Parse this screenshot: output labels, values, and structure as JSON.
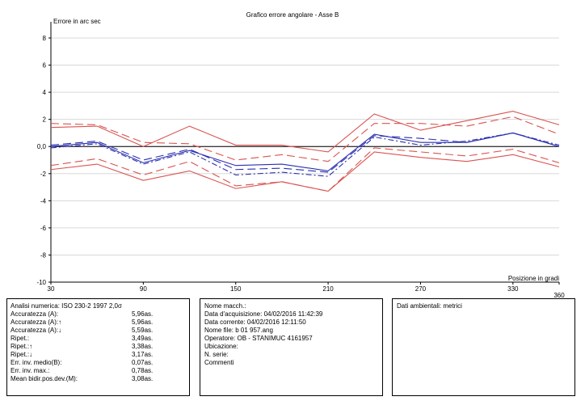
{
  "chart_data": {
    "type": "line",
    "title": "Grafico errore angolare - Asse B",
    "ylabel": "Errore in arc sec",
    "xlabel": "Posizione in gradi",
    "xlim": [
      30,
      360
    ],
    "ylim": [
      -10,
      8
    ],
    "x_ticks": [
      "30",
      "90",
      "150",
      "210",
      "270",
      "330",
      "360"
    ],
    "y_ticks": [
      "8",
      "6",
      "4",
      "2",
      "0,0",
      "-2",
      "-4",
      "-6",
      "-8",
      "-10"
    ],
    "grid": "horizontal",
    "x": [
      30,
      60,
      90,
      120,
      150,
      180,
      210,
      240,
      270,
      300,
      330,
      360
    ],
    "series": [
      {
        "color": "#d9534f",
        "style": "solid",
        "values": [
          1.4,
          1.5,
          0.0,
          1.5,
          0.1,
          0.1,
          -0.4,
          2.4,
          1.2,
          1.9,
          2.6,
          1.6
        ]
      },
      {
        "color": "#d9534f",
        "style": "dashed",
        "values": [
          1.7,
          1.6,
          0.3,
          0.2,
          -1.0,
          -0.6,
          -1.1,
          1.7,
          1.7,
          1.5,
          2.2,
          0.9
        ]
      },
      {
        "color": "#d9534f",
        "style": "dashed",
        "values": [
          -1.4,
          -0.9,
          -2.1,
          -1.1,
          -2.9,
          -2.6,
          -3.3,
          -0.1,
          -0.4,
          -0.7,
          -0.2,
          -1.2
        ]
      },
      {
        "color": "#d9534f",
        "style": "solid",
        "values": [
          -1.7,
          -1.3,
          -2.5,
          -1.8,
          -3.1,
          -2.6,
          -3.3,
          -0.4,
          -0.8,
          -1.1,
          -0.6,
          -1.5
        ]
      },
      {
        "color": "#2a2fb0",
        "style": "solid",
        "values": [
          0.0,
          0.3,
          -1.2,
          -0.3,
          -1.4,
          -1.3,
          -1.8,
          0.9,
          0.3,
          0.3,
          1.0,
          0.0
        ]
      },
      {
        "color": "#2a2fb0",
        "style": "dashed",
        "values": [
          0.1,
          0.4,
          -1.0,
          -0.2,
          -1.7,
          -1.6,
          -1.9,
          0.8,
          0.6,
          0.3,
          1.0,
          0.0
        ]
      },
      {
        "color": "#2a2fb0",
        "style": "dashdot",
        "values": [
          -0.1,
          0.2,
          -1.3,
          -0.4,
          -2.1,
          -1.9,
          -2.2,
          0.7,
          0.1,
          0.4,
          1.0,
          0.1
        ]
      }
    ],
    "zero_line": true
  },
  "analysis": {
    "header": "Analisi numerica:  ISO 230-2 1997 2,0σ",
    "rows": [
      {
        "label": "Accuratezza (A):",
        "value": "5,96as."
      },
      {
        "label": "Accuratezza (A):↑",
        "value": "5,96as."
      },
      {
        "label": "Accuratezza (A):↓",
        "value": "5,59as."
      },
      {
        "label": "Ripet.:",
        "value": "3,49as."
      },
      {
        "label": "Ripet.:↑",
        "value": "3,38as."
      },
      {
        "label": "Ripet.:↓",
        "value": "3,17as."
      },
      {
        "label": "Err. inv. medio(B):",
        "value": "0,07as."
      },
      {
        "label": "Err. inv. max.:",
        "value": "0,78as."
      },
      {
        "label": "Mean bidir.pos.dev.(M):",
        "value": "3,08as."
      }
    ]
  },
  "info": {
    "lines": [
      "Nome macch.:",
      "Data d'acquisizione: 04/02/2016 11:42:39",
      "Data corrente: 04/02/2016 12:11:50",
      "Nome file:  b 01 957.ang",
      "Operatore:  OB - STANIMUC 4161957",
      "Ubicazione:",
      "N. serie:",
      "Commenti"
    ]
  },
  "env": {
    "header": "Dati ambientali: metrici"
  }
}
